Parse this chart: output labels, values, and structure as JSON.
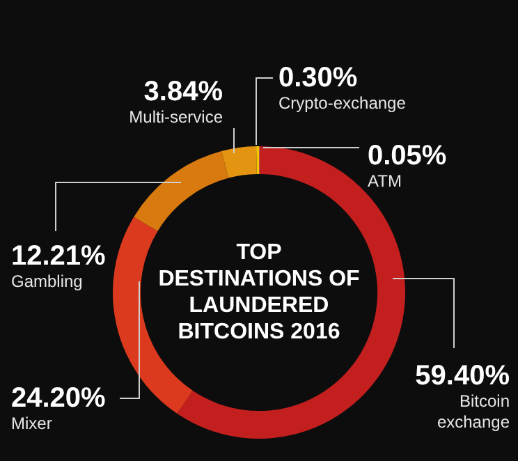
{
  "chart_data": {
    "type": "donut",
    "title": "TOP DESTINATIONS OF LAUNDERED BITCOINS 2016",
    "categories": [
      "ATM",
      "Bitcoin exchange",
      "Mixer",
      "Gambling",
      "Multi-service",
      "Crypto-exchange"
    ],
    "values": [
      0.05,
      59.4,
      24.2,
      12.21,
      3.84,
      0.3
    ],
    "value_labels": [
      "0.05%",
      "59.40%",
      "24.20%",
      "12.21%",
      "3.84%",
      "0.30%"
    ],
    "colors": [
      "#f2e2c4",
      "#c41f1f",
      "#dc3a1e",
      "#d97a10",
      "#e39512",
      "#f7c400"
    ],
    "legend": false
  }
}
